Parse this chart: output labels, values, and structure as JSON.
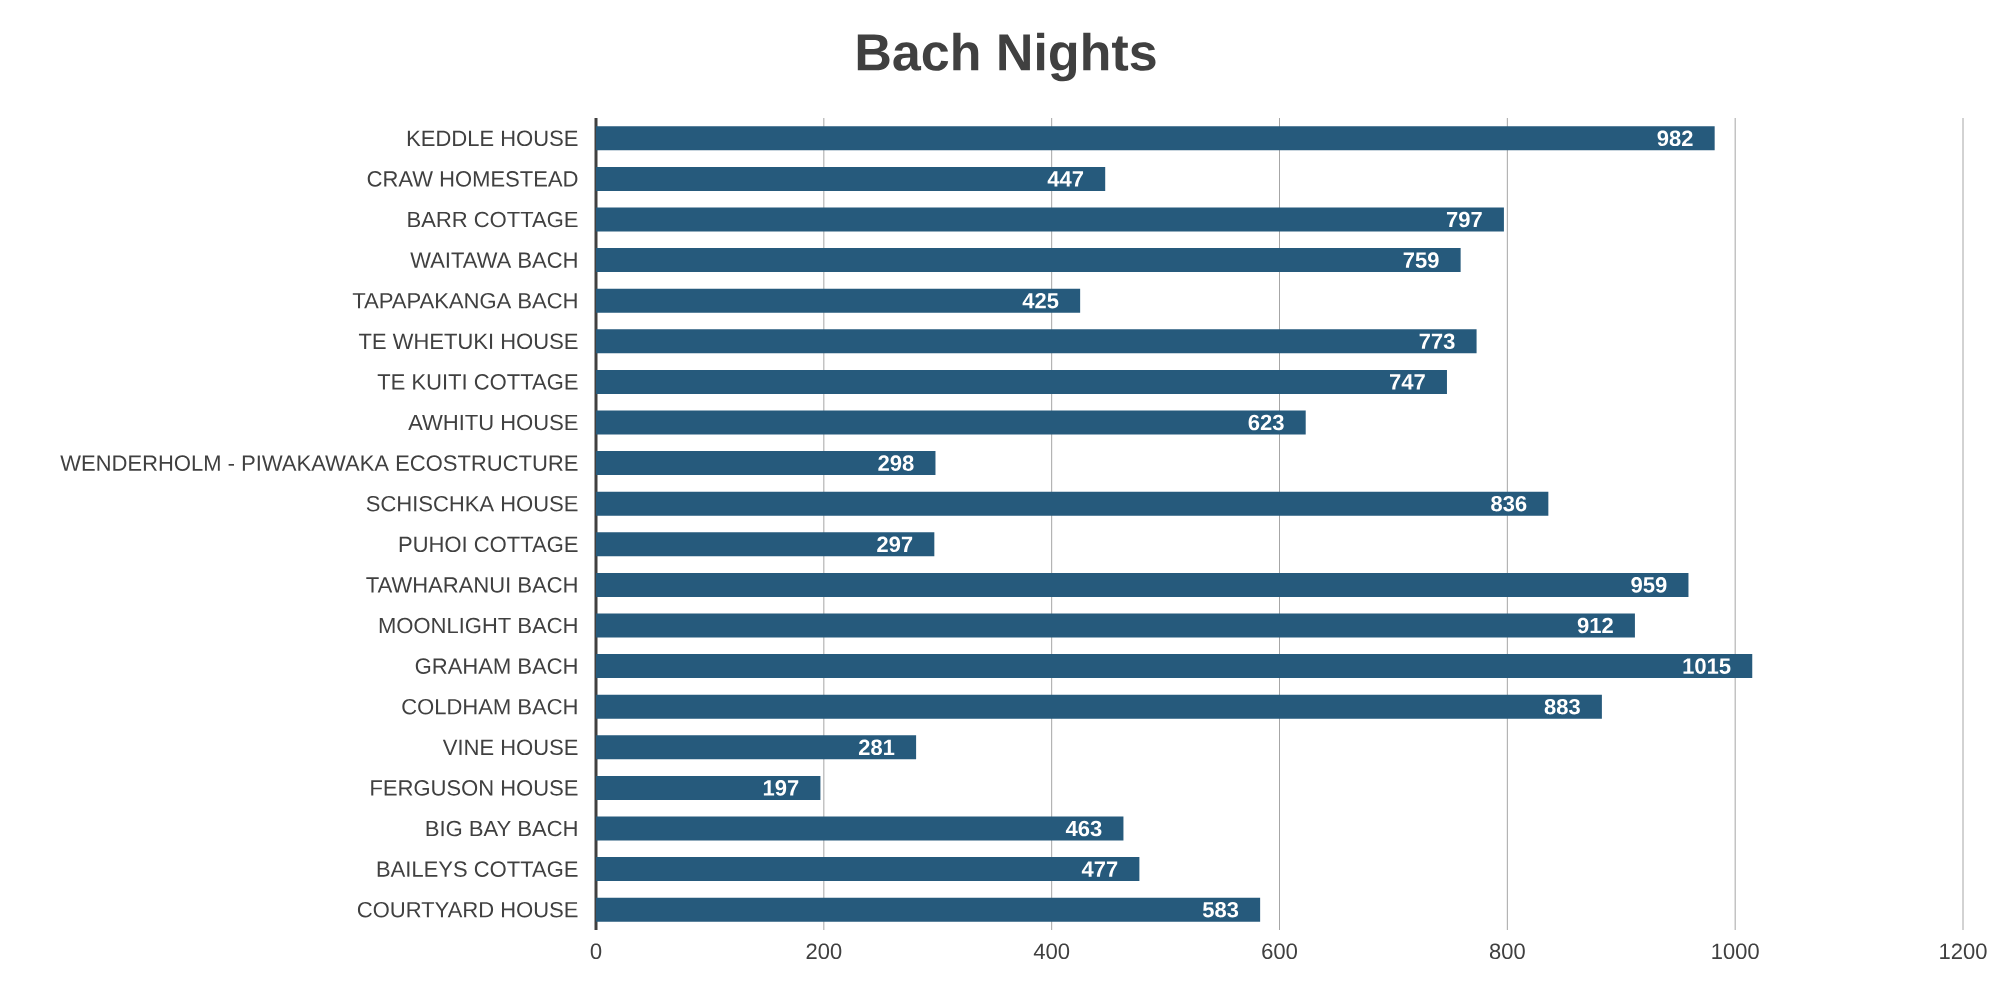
{
  "chart_data": {
    "type": "bar",
    "orientation": "horizontal",
    "title": "Bach Nights",
    "categories": [
      "KEDDLE HOUSE",
      "CRAW HOMESTEAD",
      "BARR COTTAGE",
      "WAITAWA BACH",
      "TAPAPAKANGA BACH",
      "TE WHETUKI HOUSE",
      "TE KUITI COTTAGE",
      "AWHITU HOUSE",
      "WENDERHOLM - PIWAKAWAKA ECOSTRUCTURE",
      "SCHISCHKA HOUSE",
      "PUHOI COTTAGE",
      "TAWHARANUI BACH",
      "MOONLIGHT BACH",
      "GRAHAM BACH",
      "COLDHAM BACH",
      "VINE HOUSE",
      "FERGUSON HOUSE",
      "BIG BAY BACH",
      "BAILEYS COTTAGE",
      "COURTYARD HOUSE"
    ],
    "values": [
      982,
      447,
      797,
      759,
      425,
      773,
      747,
      623,
      298,
      836,
      297,
      959,
      912,
      1015,
      883,
      281,
      197,
      463,
      477,
      583
    ],
    "color": "#265a7c",
    "xlim": [
      0,
      1200
    ],
    "xticks": [
      0,
      200,
      400,
      600,
      800,
      1000,
      1200
    ],
    "grid": "x",
    "data_labels": true
  }
}
